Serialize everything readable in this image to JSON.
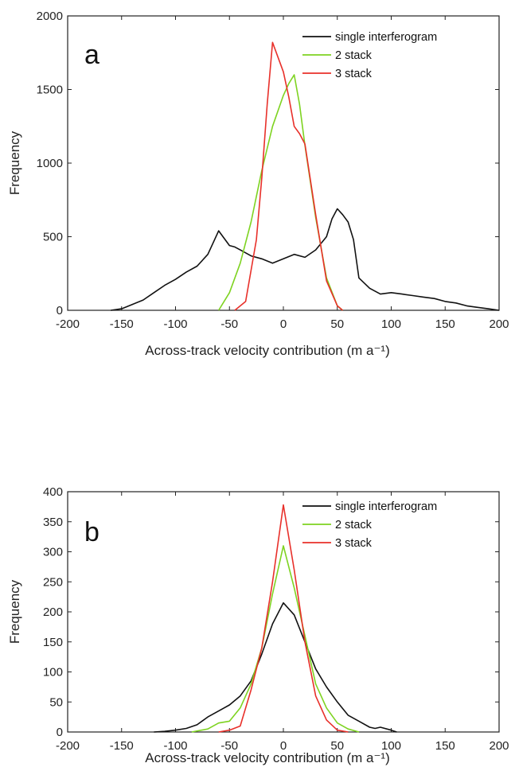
{
  "chart_data": [
    {
      "type": "line",
      "panel_label": "a",
      "xlabel": "Across-track velocity contribution (m a⁻¹)",
      "ylabel": "Frequency",
      "xlim": [
        -200,
        200
      ],
      "ylim": [
        0,
        2000
      ],
      "xticks": [
        -200,
        -150,
        -100,
        -50,
        0,
        50,
        100,
        150,
        200
      ],
      "yticks": [
        0,
        500,
        1000,
        1500,
        2000
      ],
      "legend_position": "top-right",
      "series": [
        {
          "name": "single interferogram",
          "color": "#111111",
          "x": [
            -160,
            -150,
            -140,
            -130,
            -120,
            -110,
            -100,
            -90,
            -80,
            -70,
            -65,
            -60,
            -55,
            -50,
            -45,
            -40,
            -30,
            -20,
            -10,
            0,
            10,
            20,
            30,
            40,
            45,
            50,
            55,
            60,
            65,
            70,
            80,
            90,
            100,
            110,
            120,
            130,
            140,
            150,
            160,
            170,
            180,
            190,
            200
          ],
          "y": [
            0,
            10,
            40,
            70,
            120,
            170,
            210,
            260,
            300,
            380,
            460,
            540,
            490,
            440,
            430,
            410,
            370,
            350,
            320,
            350,
            380,
            360,
            410,
            500,
            620,
            690,
            650,
            600,
            480,
            220,
            150,
            110,
            120,
            110,
            100,
            90,
            80,
            60,
            50,
            30,
            20,
            10,
            0
          ]
        },
        {
          "name": "2 stack",
          "color": "#7ed321",
          "x": [
            -60,
            -50,
            -40,
            -30,
            -20,
            -10,
            0,
            5,
            10,
            15,
            20,
            30,
            40,
            50,
            55
          ],
          "y": [
            0,
            120,
            320,
            600,
            950,
            1250,
            1460,
            1540,
            1600,
            1400,
            1120,
            630,
            220,
            30,
            0
          ]
        },
        {
          "name": "3 stack",
          "color": "#e8302a",
          "x": [
            -45,
            -35,
            -25,
            -20,
            -15,
            -10,
            -5,
            0,
            5,
            10,
            15,
            20,
            30,
            40,
            50,
            55
          ],
          "y": [
            0,
            60,
            480,
            900,
            1400,
            1820,
            1720,
            1620,
            1450,
            1250,
            1200,
            1130,
            650,
            200,
            30,
            0
          ]
        }
      ]
    },
    {
      "type": "line",
      "panel_label": "b",
      "xlabel": "Across-track velocity contribution (m a⁻¹)",
      "ylabel": "Frequency",
      "xlim": [
        -200,
        200
      ],
      "ylim": [
        0,
        400
      ],
      "xticks": [
        -200,
        -150,
        -100,
        -50,
        0,
        50,
        100,
        150,
        200
      ],
      "yticks": [
        0,
        50,
        100,
        150,
        200,
        250,
        300,
        350,
        400
      ],
      "legend_position": "top-right",
      "series": [
        {
          "name": "single interferogram",
          "color": "#111111",
          "x": [
            -120,
            -110,
            -100,
            -90,
            -80,
            -70,
            -60,
            -50,
            -40,
            -30,
            -20,
            -10,
            0,
            10,
            20,
            30,
            40,
            50,
            60,
            70,
            80,
            85,
            90,
            100,
            105
          ],
          "y": [
            0,
            1,
            3,
            6,
            12,
            25,
            35,
            45,
            60,
            85,
            130,
            180,
            215,
            195,
            150,
            105,
            75,
            50,
            28,
            18,
            8,
            6,
            8,
            3,
            0
          ]
        },
        {
          "name": "2 stack",
          "color": "#7ed321",
          "x": [
            -85,
            -70,
            -60,
            -50,
            -40,
            -30,
            -20,
            -10,
            0,
            10,
            20,
            30,
            40,
            50,
            60,
            70
          ],
          "y": [
            0,
            5,
            15,
            18,
            40,
            80,
            140,
            230,
            310,
            240,
            160,
            80,
            40,
            15,
            5,
            0
          ]
        },
        {
          "name": "3 stack",
          "color": "#e8302a",
          "x": [
            -60,
            -50,
            -40,
            -30,
            -20,
            -10,
            0,
            10,
            20,
            30,
            40,
            50,
            60
          ],
          "y": [
            0,
            3,
            10,
            70,
            140,
            250,
            378,
            270,
            150,
            60,
            20,
            3,
            0
          ]
        }
      ]
    }
  ]
}
